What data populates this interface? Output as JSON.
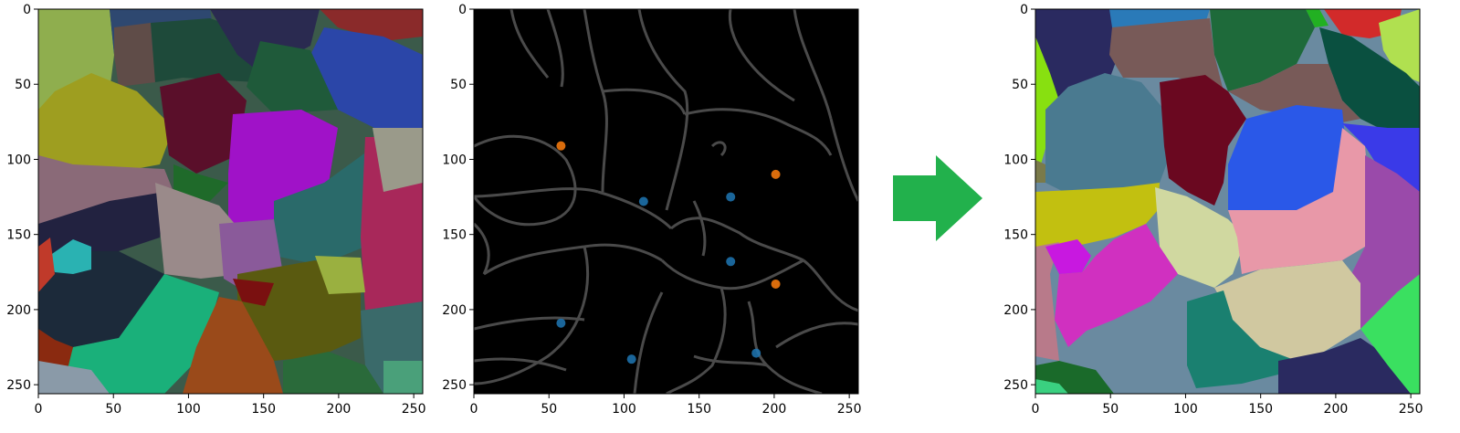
{
  "panels": [
    {
      "id": "left",
      "x_ticks": [
        "0",
        "50",
        "100",
        "150",
        "200",
        "250"
      ],
      "y_ticks": [
        "0",
        "50",
        "100",
        "150",
        "200",
        "250"
      ]
    },
    {
      "id": "middle",
      "x_ticks": [
        "0",
        "50",
        "100",
        "150",
        "200",
        "250"
      ],
      "y_ticks": [
        "0",
        "50",
        "100",
        "150",
        "200",
        "250"
      ]
    },
    {
      "id": "right",
      "x_ticks": [
        "0",
        "50",
        "100",
        "150",
        "200",
        "250"
      ],
      "y_ticks": [
        "0",
        "50",
        "100",
        "150",
        "200",
        "250"
      ]
    }
  ],
  "image_extent": [
    0,
    256
  ],
  "points": {
    "blue": [
      [
        58,
        209
      ],
      [
        105,
        233
      ],
      [
        113,
        128
      ],
      [
        171,
        125
      ],
      [
        171,
        168
      ],
      [
        188,
        229
      ]
    ],
    "orange": [
      [
        58,
        91
      ],
      [
        201,
        110
      ],
      [
        201,
        183
      ]
    ]
  },
  "colors": {
    "arrow": "#22b14c",
    "point_blue": "#1f77b4",
    "point_orange": "#ff7f0e",
    "boundary": "#4a4a4a",
    "background_middle": "#000000"
  }
}
